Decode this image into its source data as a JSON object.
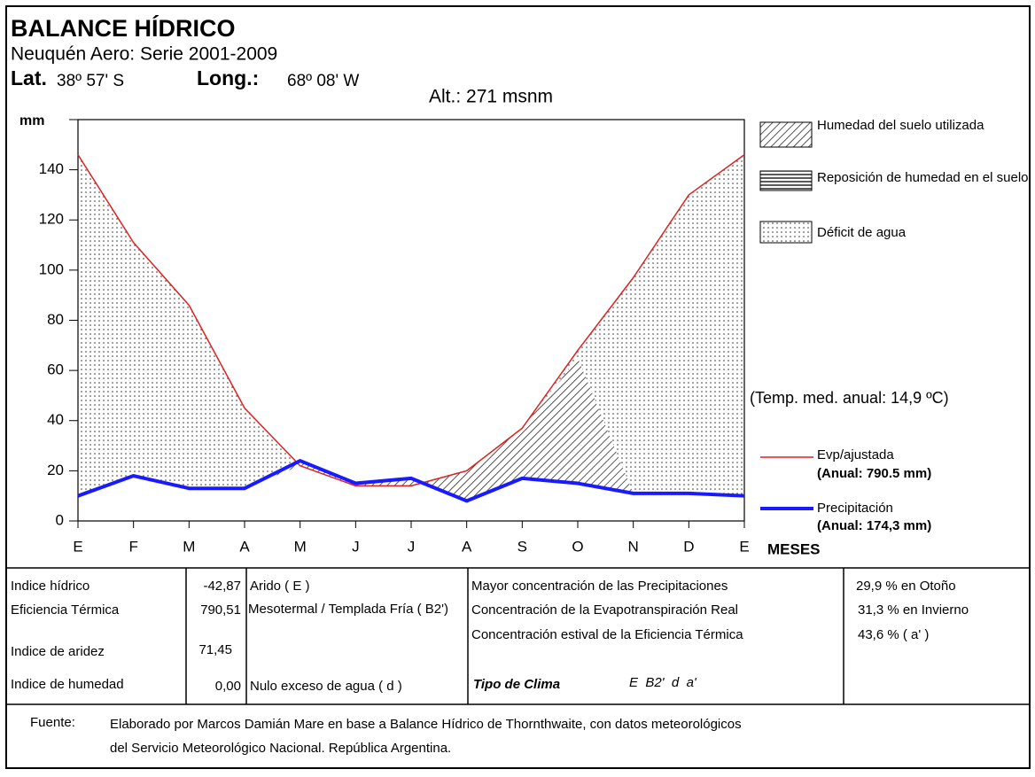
{
  "chart_data": {
    "type": "line",
    "title": "BALANCE HÍDRICO",
    "subtitle": "Neuquén Aero: Serie 2001-2009",
    "lat_label": "Lat.",
    "lat": "38º 57' S",
    "long_label": "Long.:",
    "long": "68º 08' W",
    "altitude": "Alt.:  271 msnm",
    "y_label": "mm",
    "x_label": "MESES",
    "categories": [
      "E",
      "F",
      "M",
      "A",
      "M",
      "J",
      "J",
      "A",
      "S",
      "O",
      "N",
      "D",
      "E"
    ],
    "series": [
      {
        "name": "Evp/ajustada",
        "annual": "(Anual: 790.5    mm)",
        "color": "#e02020",
        "values": [
          146,
          111,
          86,
          45,
          22,
          14,
          14,
          20,
          37,
          68,
          97,
          130,
          146
        ]
      },
      {
        "name": "Precipitación",
        "annual": "(Anual: 174,3    mm)",
        "color": "#1a1aff",
        "values": [
          10,
          18,
          13,
          13,
          24,
          15,
          17,
          8,
          17,
          15,
          11,
          11,
          10
        ]
      }
    ],
    "etr": [
      10,
      18,
      13,
      13,
      22,
      14,
      14,
      20,
      37,
      65,
      11,
      11,
      10
    ],
    "areas": [
      {
        "name": "Humedad del suelo utilizada"
      },
      {
        "name": "Reposición de humedad en el suelo"
      },
      {
        "name": "Déficit de agua"
      }
    ],
    "annotation": "(Temp. med. anual:  14,9  ºC)",
    "ylim": [
      0,
      160
    ],
    "yticks": [
      0,
      20,
      40,
      60,
      80,
      100,
      120,
      140
    ]
  },
  "table": {
    "indices": [
      {
        "label": "Indice hídrico",
        "value": "-42,87",
        "class": "Arido ( E )"
      },
      {
        "label": "Eficiencia Térmica",
        "value": "790,51",
        "class": "Mesotermal / Templada Fría ( B2')"
      },
      {
        "label": "Indice de aridez",
        "value": "71,45"
      },
      {
        "label": "Indice de humedad",
        "value": "0,00",
        "class": "Nulo exceso de agua ( d )"
      }
    ],
    "concentrations": [
      {
        "label": "Mayor concentración de las Precipitaciones",
        "value": "29,9 % en Otoño"
      },
      {
        "label": "Concentración de la Evapotranspiración Real",
        "value": "31,3 % en Invierno"
      },
      {
        "label": "Concentración estival de la Eficiencia Térmica",
        "value": "43,6 %  ( a' )"
      }
    ],
    "climate_label": "Tipo de Clima",
    "climate": "E  B2'  d  a'"
  },
  "source_label": "Fuente:",
  "source": [
    "Elaborado por Marcos Damián Mare en base a Balance Hídrico de Thornthwaite, con datos meteorológicos",
    "del Servicio Meteorológico Nacional. República Argentina."
  ]
}
